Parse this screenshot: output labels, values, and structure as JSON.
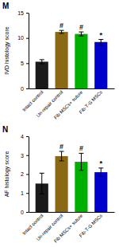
{
  "chart_data": [
    {
      "type": "bar",
      "title": "M",
      "ylabel": "IVD histology score",
      "categories": [
        "Intact control",
        "Un-repair control",
        "Fib MSCs+ suture",
        "Fib-T-G MSCs"
      ],
      "values": [
        5.3,
        11.2,
        10.8,
        9.2
      ],
      "errors": [
        0.4,
        0.3,
        0.4,
        0.5
      ],
      "colors": [
        "#1a1a1a",
        "#8B6914",
        "#00b000",
        "#0000cc"
      ],
      "ylim": [
        0,
        15
      ],
      "yticks": [
        0,
        5,
        10,
        15
      ],
      "significance": [
        null,
        "#",
        "#",
        "*"
      ],
      "grid": false
    },
    {
      "type": "bar",
      "title": "N",
      "ylabel": "AF histology score",
      "categories": [
        "Intact control",
        "Un-repair control",
        "Fib MSCs+ suture",
        "Fib-T-G MSCs"
      ],
      "values": [
        1.5,
        2.95,
        2.65,
        2.1
      ],
      "errors": [
        0.55,
        0.25,
        0.45,
        0.22
      ],
      "colors": [
        "#1a1a1a",
        "#8B6914",
        "#00b000",
        "#0000cc"
      ],
      "ylim": [
        0,
        4
      ],
      "yticks": [
        0,
        1,
        2,
        3,
        4
      ],
      "significance": [
        null,
        "#",
        "#",
        "*"
      ],
      "grid": false
    }
  ]
}
